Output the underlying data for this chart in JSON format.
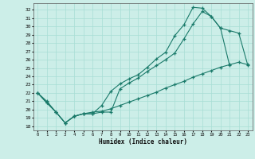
{
  "xlabel": "Humidex (Indice chaleur)",
  "bg_color": "#cceee8",
  "line_color": "#1a7a6a",
  "grid_color": "#a8ddd5",
  "xlim": [
    -0.5,
    23.5
  ],
  "ylim": [
    17.5,
    32.8
  ],
  "yticks": [
    18,
    19,
    20,
    21,
    22,
    23,
    24,
    25,
    26,
    27,
    28,
    29,
    30,
    31,
    32
  ],
  "xticks": [
    0,
    1,
    2,
    3,
    4,
    5,
    6,
    7,
    8,
    9,
    10,
    11,
    12,
    13,
    14,
    15,
    16,
    17,
    18,
    19,
    20,
    21,
    22,
    23
  ],
  "line1_x": [
    0,
    1,
    2,
    3,
    4,
    5,
    6,
    7,
    8,
    9,
    10,
    11,
    12,
    13,
    14,
    15,
    16,
    17,
    18,
    19,
    20,
    21
  ],
  "line1_y": [
    22,
    20.8,
    19.7,
    18.4,
    19.2,
    19.5,
    19.5,
    19.7,
    19.7,
    22.5,
    23.2,
    23.8,
    24.6,
    25.3,
    26.0,
    26.8,
    28.5,
    30.3,
    31.8,
    31.2,
    29.8,
    25.3
  ],
  "line2_x": [
    0,
    1,
    2,
    3,
    4,
    5,
    6,
    7,
    8,
    9,
    10,
    11,
    12,
    13,
    14,
    15,
    16,
    17,
    18,
    19,
    20,
    21,
    22,
    23
  ],
  "line2_y": [
    22,
    20.8,
    19.7,
    18.4,
    19.2,
    19.5,
    19.5,
    20.5,
    22.2,
    23.1,
    23.7,
    24.2,
    25.1,
    26.1,
    26.9,
    28.9,
    30.2,
    32.3,
    32.2,
    31.2,
    29.8,
    29.5,
    29.2,
    25.3
  ],
  "line3_x": [
    0,
    1,
    2,
    3,
    4,
    5,
    6,
    7,
    8,
    9,
    10,
    11,
    12,
    13,
    14,
    15,
    16,
    17,
    18,
    19,
    20,
    21,
    22,
    23
  ],
  "line3_y": [
    22,
    21.0,
    19.7,
    18.4,
    19.2,
    19.5,
    19.7,
    19.8,
    20.1,
    20.5,
    20.9,
    21.3,
    21.7,
    22.1,
    22.6,
    23.0,
    23.4,
    23.9,
    24.3,
    24.7,
    25.1,
    25.4,
    25.7,
    25.4
  ]
}
